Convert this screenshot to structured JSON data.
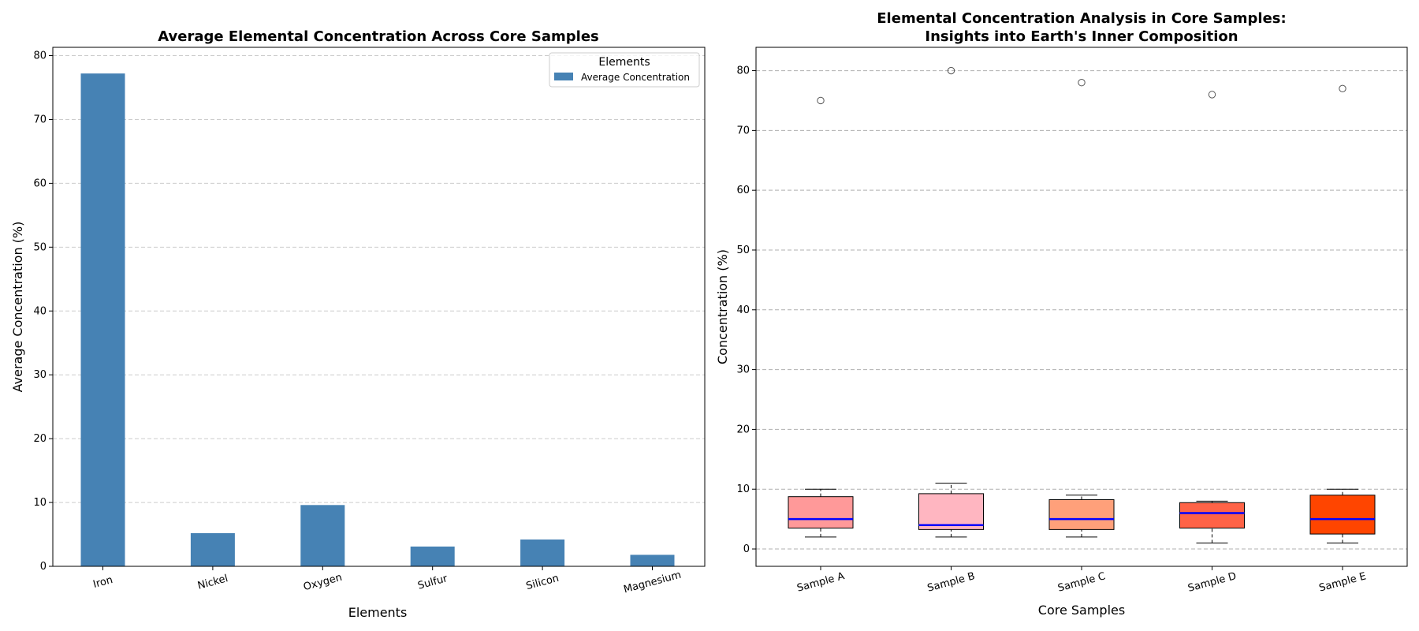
{
  "chart_data": [
    {
      "type": "bar",
      "title": "Average Elemental Concentration Across Core Samples",
      "xlabel": "Elements",
      "ylabel": "Average Concentration (%)",
      "categories": [
        "Iron",
        "Nickel",
        "Oxygen",
        "Sulfur",
        "Silicon",
        "Magnesium"
      ],
      "series": [
        {
          "name": "Average Concentration",
          "values": [
            77.2,
            5.2,
            9.6,
            3.1,
            4.2,
            1.8
          ],
          "color": "#4682b4"
        }
      ],
      "ylim": [
        0,
        81.3
      ],
      "yticks": [
        0,
        10,
        20,
        30,
        40,
        50,
        60,
        70,
        80
      ],
      "grid": "y-dashed",
      "legend": {
        "title": "Elements",
        "placement": "top-right"
      }
    },
    {
      "type": "box",
      "title_line1": "Elemental Concentration Analysis in Core Samples:",
      "title_line2": "Insights into Earth's Inner Composition",
      "xlabel": "Core Samples",
      "ylabel": "Concentration (%)",
      "categories": [
        "Sample A",
        "Sample B",
        "Sample C",
        "Sample D",
        "Sample E"
      ],
      "boxes": [
        {
          "whisker_low": 2,
          "q1": 3.5,
          "median": 5,
          "q3": 8.75,
          "whisker_high": 10,
          "outliers": [
            75
          ],
          "color": "#ff9999"
        },
        {
          "whisker_low": 2,
          "q1": 3.25,
          "median": 4,
          "q3": 9.25,
          "whisker_high": 11,
          "outliers": [
            80
          ],
          "color": "#ffb6c1"
        },
        {
          "whisker_low": 2,
          "q1": 3.25,
          "median": 5,
          "q3": 8.25,
          "whisker_high": 9,
          "outliers": [
            78
          ],
          "color": "#ffa07a"
        },
        {
          "whisker_low": 1,
          "q1": 3.5,
          "median": 6,
          "q3": 7.75,
          "whisker_high": 8,
          "outliers": [
            76
          ],
          "color": "#ff6347"
        },
        {
          "whisker_low": 1,
          "q1": 2.5,
          "median": 5,
          "q3": 9,
          "whisker_high": 10,
          "outliers": [
            77
          ],
          "color": "#ff4500"
        }
      ],
      "median_color": "#0000ff",
      "ylim": [
        -2.9,
        83.9
      ],
      "yticks": [
        0,
        10,
        20,
        30,
        40,
        50,
        60,
        70,
        80
      ],
      "grid": "y-dashed"
    }
  ]
}
